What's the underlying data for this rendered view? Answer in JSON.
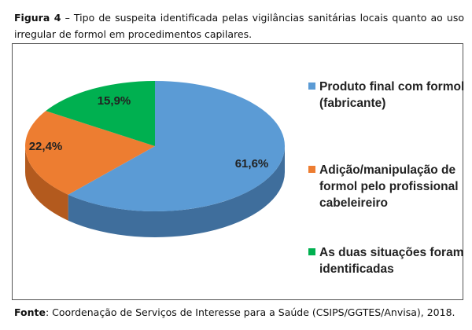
{
  "caption": {
    "label": "Figura 4",
    "text": " – Tipo de suspeita identificada pelas vigilâncias sanitárias locais quanto ao uso irregular de formol em procedimentos capilares."
  },
  "source": {
    "label": "Fonte",
    "text": ": Coordenação de Serviços de Interesse para a Saúde (CSIPS/GGTES/Anvisa), 2018."
  },
  "chart_data": {
    "type": "pie",
    "style": "3d",
    "title": "",
    "legend_position": "right",
    "slices": [
      {
        "label": "Produto final com formol (fabricante)",
        "value": 61.6,
        "display": "61,6%",
        "color": "#5B9BD5",
        "side_color": "#3F6E9C"
      },
      {
        "label": "Adição/manipulação de formol pelo profissional cabeleireiro",
        "value": 22.4,
        "display": "22,4%",
        "color": "#ED7D31",
        "side_color": "#B35A1E"
      },
      {
        "label": "As duas situações foram identificadas",
        "value": 15.9,
        "display": "15,9%",
        "color": "#00B050",
        "side_color": "#007A38"
      }
    ]
  }
}
